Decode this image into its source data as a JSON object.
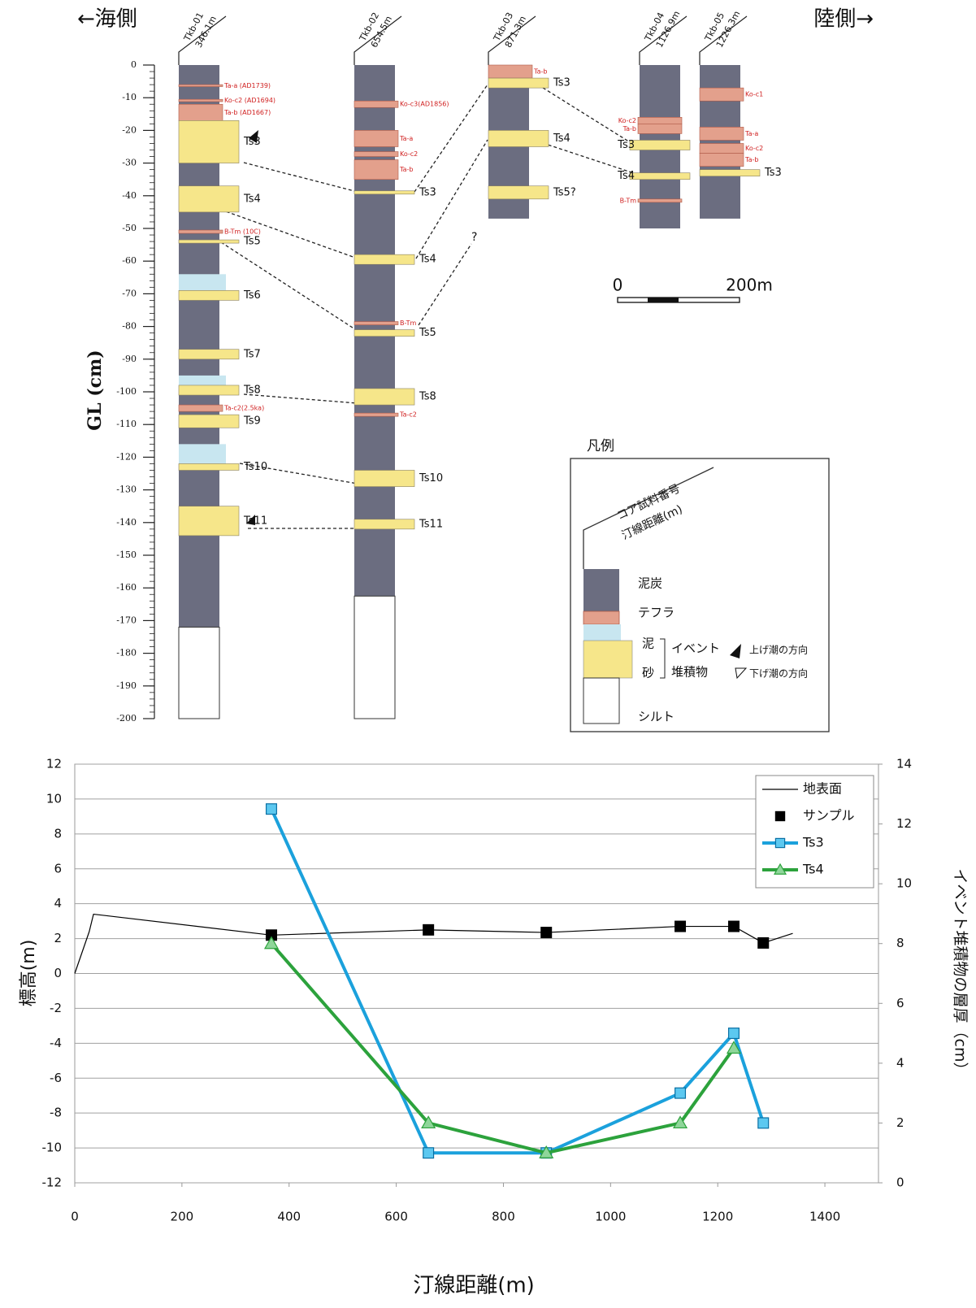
{
  "diagram": {
    "left_label": "←海側",
    "right_label": "陸側→",
    "depth_axis": {
      "label": "GL (cm)",
      "lim": [
        0,
        -200
      ],
      "ticks": [
        0,
        -10,
        -20,
        -30,
        -40,
        -50,
        -60,
        -70,
        -80,
        -90,
        -100,
        -110,
        -120,
        -130,
        -140,
        -150,
        -160,
        -170,
        -180,
        -190,
        -200
      ]
    },
    "columns": [
      {
        "name": "Tkb-01",
        "distance": "346.1m",
        "bottom": -172,
        "silt_bottom": -200,
        "layers": [
          {
            "kind": "tephra",
            "top": -6,
            "bottom": -6.6,
            "label": "Ta-a (AD1739)"
          },
          {
            "kind": "tephra",
            "top": -10.5,
            "bottom": -11.2,
            "label": "Ko-c2 (AD1694)"
          },
          {
            "kind": "tephra",
            "top": -12,
            "bottom": -17,
            "label": "Ta-b (AD1667)"
          },
          {
            "kind": "sand",
            "top": -17,
            "bottom": -30,
            "label": "Ts3"
          },
          {
            "kind": "sand",
            "top": -37,
            "bottom": -45,
            "label": "Ts4"
          },
          {
            "kind": "tephra",
            "top": -50.5,
            "bottom": -51.5,
            "label": "B-Tm (10C)"
          },
          {
            "kind": "sand",
            "top": -53.5,
            "bottom": -54.5,
            "label": "Ts5"
          },
          {
            "kind": "mud",
            "top": -64,
            "bottom": -69
          },
          {
            "kind": "sand",
            "top": -69,
            "bottom": -72,
            "label": "Ts6"
          },
          {
            "kind": "sand",
            "top": -87,
            "bottom": -90,
            "label": "Ts7"
          },
          {
            "kind": "mud",
            "top": -95,
            "bottom": -98
          },
          {
            "kind": "sand",
            "top": -98,
            "bottom": -101,
            "label": "Ts8"
          },
          {
            "kind": "tephra",
            "top": -104,
            "bottom": -106,
            "label": "Ta-c2(2.5ka)"
          },
          {
            "kind": "sand",
            "top": -107,
            "bottom": -111,
            "label": "Ts9"
          },
          {
            "kind": "mud",
            "top": -116,
            "bottom": -122
          },
          {
            "kind": "sand",
            "top": -122,
            "bottom": -124,
            "label": "Ts10"
          },
          {
            "kind": "sand",
            "top": -135,
            "bottom": -144,
            "label": "Ts11"
          }
        ]
      },
      {
        "name": "Tkb-02",
        "distance": "654.5m",
        "bottom": -162.5,
        "silt_bottom": -200,
        "layers": [
          {
            "kind": "tephra",
            "top": -11,
            "bottom": -13,
            "label": "Ko-c3(AD1856)"
          },
          {
            "kind": "tephra",
            "top": -20,
            "bottom": -25,
            "label": "Ta-a"
          },
          {
            "kind": "tephra",
            "top": -26.5,
            "bottom": -28,
            "label": "Ko-c2"
          },
          {
            "kind": "tephra",
            "top": -29,
            "bottom": -35,
            "label": "Ta-b"
          },
          {
            "kind": "sand",
            "top": -38.5,
            "bottom": -39.5,
            "label": "Ts3"
          },
          {
            "kind": "sand",
            "top": -58,
            "bottom": -61,
            "label": "Ts4"
          },
          {
            "kind": "tephra",
            "top": -78.5,
            "bottom": -79.5,
            "label": "B-Tm"
          },
          {
            "kind": "sand",
            "top": -81,
            "bottom": -83,
            "label": "Ts5"
          },
          {
            "kind": "sand",
            "top": -99,
            "bottom": -104,
            "label": "Ts8"
          },
          {
            "kind": "tephra",
            "top": -106.5,
            "bottom": -107.5,
            "label": "Ta-c2"
          },
          {
            "kind": "sand",
            "top": -124,
            "bottom": -129,
            "label": "Ts10"
          },
          {
            "kind": "sand",
            "top": -139,
            "bottom": -142,
            "label": "Ts11"
          }
        ]
      },
      {
        "name": "Tkb-03",
        "distance": "871.3m",
        "bottom": -47,
        "layers": [
          {
            "kind": "tephra",
            "top": 0,
            "bottom": -4,
            "label": "Ta-b"
          },
          {
            "kind": "sand",
            "top": -4,
            "bottom": -7,
            "label": "Ts3"
          },
          {
            "kind": "sand",
            "top": -20,
            "bottom": -25,
            "label": "Ts4"
          },
          {
            "kind": "sand",
            "top": -37,
            "bottom": -41,
            "label": "Ts5?"
          }
        ]
      },
      {
        "name": "Tkb-04",
        "distance": "1126.9m",
        "bottom": -50,
        "layers": [
          {
            "kind": "tephra",
            "top": -16,
            "bottom": -18,
            "label": "Ko-c2"
          },
          {
            "kind": "tephra",
            "top": -18,
            "bottom": -21,
            "label": "Ta-b"
          },
          {
            "kind": "sand",
            "top": -23,
            "bottom": -26,
            "label": "Ts3"
          },
          {
            "kind": "sand",
            "top": -33,
            "bottom": -35,
            "label": "Ts4"
          },
          {
            "kind": "tephra",
            "top": -41,
            "bottom": -42,
            "label": "B-Tm"
          }
        ]
      },
      {
        "name": "Tkb-05",
        "distance": "1226.3m",
        "bottom": -47,
        "layers": [
          {
            "kind": "tephra",
            "top": -7,
            "bottom": -11,
            "label": "Ko-c1"
          },
          {
            "kind": "tephra",
            "top": -19,
            "bottom": -23,
            "label": "Ta-a"
          },
          {
            "kind": "tephra",
            "top": -24,
            "bottom": -27,
            "label": "Ko-c2"
          },
          {
            "kind": "tephra",
            "top": -27,
            "bottom": -31,
            "label": "Ta-b"
          },
          {
            "kind": "sand",
            "top": -32,
            "bottom": -34,
            "label": "Ts3"
          }
        ]
      }
    ],
    "question_mark": "?",
    "scale_bar": {
      "start": "0",
      "end": "200m"
    },
    "legend": {
      "title": "凡例",
      "core_id": "コア試料番号",
      "distance": "汀線距離(m)",
      "peat": "泥炭",
      "tephra": "テフラ",
      "mud": "泥",
      "sand": "砂",
      "event": "イベント",
      "deposit": "堆積物",
      "flood": "上げ潮の方向",
      "ebb": "下げ潮の方向",
      "silt": "シルト"
    }
  },
  "chart_data": {
    "type": "line",
    "xlabel": "汀線距離(m)",
    "ylabel": "標高(m)",
    "y2label": "イベント堆積物の層厚（cm）",
    "xlim": [
      0,
      1500
    ],
    "xticks": [
      0,
      200,
      400,
      600,
      800,
      1000,
      1200,
      1400
    ],
    "ylim": [
      -12,
      12
    ],
    "yticks": [
      -12,
      -10,
      -8,
      -6,
      -4,
      -2,
      0,
      2,
      4,
      6,
      8,
      10,
      12
    ],
    "y2lim": [
      0,
      14
    ],
    "y2ticks": [
      0,
      2,
      4,
      6,
      8,
      10,
      12,
      14
    ],
    "grid": true,
    "legend": "upper right",
    "series": [
      {
        "name": "地表面",
        "color": "#000000",
        "line_width": 1.2,
        "x": [
          0,
          27,
          35,
          367,
          660,
          880,
          1130,
          1230,
          1285,
          1340
        ],
        "values": [
          0,
          2.4,
          3.4,
          2.2,
          2.5,
          2.35,
          2.7,
          2.7,
          1.75,
          2.3
        ]
      },
      {
        "name": "サンプル",
        "color": "#000000",
        "marker": "square",
        "marker_color": "#000000",
        "line": false,
        "x": [
          367,
          660,
          880,
          1130,
          1230,
          1285
        ],
        "values": [
          2.2,
          2.5,
          2.35,
          2.7,
          2.7,
          1.75
        ]
      },
      {
        "name": "Ts3",
        "color": "#1ba1dc",
        "marker": "square",
        "marker_color": "#5cc8f0",
        "line_width": 4,
        "axis": "y2",
        "x": [
          367,
          660,
          880,
          1130,
          1230,
          1285
        ],
        "values": [
          12.5,
          1,
          1,
          3,
          5,
          2
        ]
      },
      {
        "name": "Ts4",
        "color": "#2ca23c",
        "marker": "triangle",
        "marker_color": "#8fd69a",
        "line_width": 4,
        "axis": "y2",
        "x": [
          367,
          660,
          880,
          1130,
          1230
        ],
        "values": [
          8,
          2,
          1,
          2,
          4.5
        ]
      }
    ]
  }
}
